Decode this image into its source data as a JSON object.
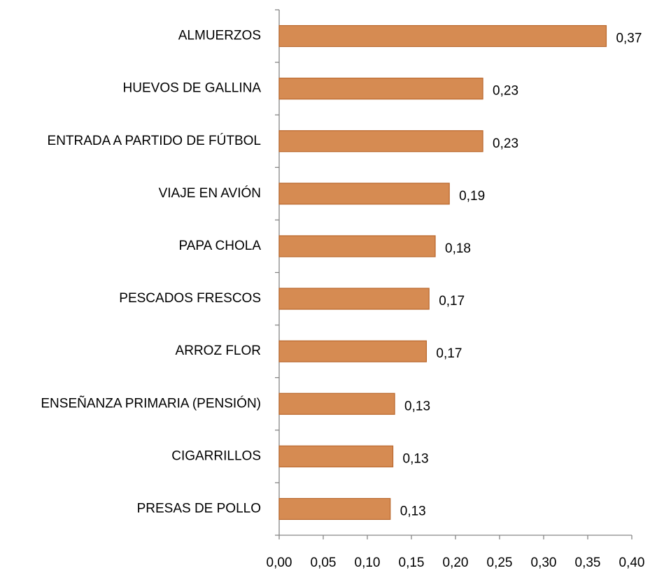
{
  "chart_data": {
    "type": "bar",
    "orientation": "horizontal",
    "categories": [
      "ALMUERZOS",
      "HUEVOS DE GALLINA",
      "ENTRADA A PARTIDO DE FÚTBOL",
      "VIAJE EN AVIÓN",
      "PAPA CHOLA",
      "PESCADOS FRESCOS",
      "ARROZ FLOR",
      "ENSEÑANZA PRIMARIA (PENSIÓN)",
      "CIGARRILLOS",
      "PRESAS DE POLLO"
    ],
    "values": [
      0.371,
      0.231,
      0.231,
      0.193,
      0.177,
      0.17,
      0.167,
      0.131,
      0.129,
      0.126
    ],
    "value_labels": [
      "0,37",
      "0,23",
      "0,23",
      "0,19",
      "0,18",
      "0,17",
      "0,17",
      "0,13",
      "0,13",
      "0,13"
    ],
    "color": "#d68b52",
    "edge_color": "#b9672c",
    "xlim": [
      0,
      0.4
    ],
    "xticks": [
      {
        "value": 0,
        "label": "0,00"
      },
      {
        "value": 0.05,
        "label": "0,05"
      },
      {
        "value": 0.1,
        "label": "0,10"
      },
      {
        "value": 0.15,
        "label": "0,15"
      },
      {
        "value": 0.2,
        "label": "0,20"
      },
      {
        "value": 0.25,
        "label": "0,25"
      },
      {
        "value": 0.3,
        "label": "0,30"
      },
      {
        "value": 0.35,
        "label": "0,35"
      },
      {
        "value": 0.4,
        "label": "0,40"
      }
    ],
    "grid": false
  }
}
